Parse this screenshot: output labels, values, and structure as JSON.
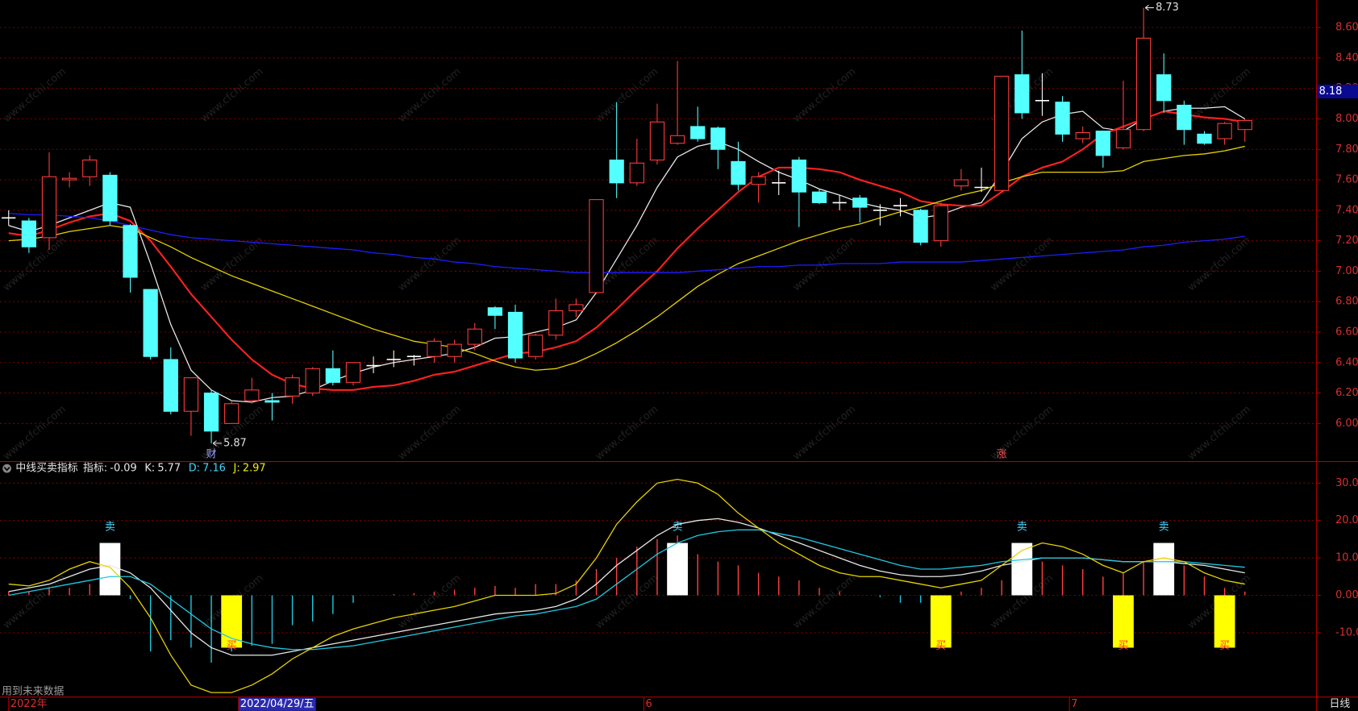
{
  "chart_data": [
    {
      "type": "candlestick",
      "categories": [
        "2022年",
        null,
        null,
        null,
        null,
        null,
        null,
        null,
        null,
        null,
        null,
        "2022/04/29/五",
        null,
        null,
        null,
        null,
        null,
        null,
        null,
        null,
        null,
        null,
        null,
        null,
        null,
        null,
        null,
        null,
        null,
        null,
        null,
        "6",
        null,
        null,
        null,
        null,
        null,
        null,
        null,
        null,
        null,
        null,
        null,
        null,
        null,
        null,
        null,
        null,
        null,
        null,
        null,
        null,
        "7",
        null,
        null,
        null,
        null,
        null,
        null,
        null,
        null,
        null
      ],
      "event_labels": [
        null,
        null,
        null,
        null,
        null,
        null,
        null,
        null,
        null,
        null,
        "财",
        null,
        null,
        null,
        null,
        null,
        null,
        null,
        null,
        null,
        null,
        null,
        null,
        null,
        null,
        null,
        null,
        null,
        null,
        null,
        null,
        null,
        null,
        null,
        null,
        null,
        null,
        null,
        null,
        null,
        null,
        null,
        null,
        null,
        null,
        null,
        null,
        null,
        null,
        "涨",
        null,
        null,
        null,
        null,
        null,
        null,
        null,
        null,
        null,
        null,
        null,
        null
      ],
      "open": [
        7.35,
        7.33,
        7.22,
        7.6,
        7.62,
        7.63,
        7.3,
        6.88,
        6.42,
        6.08,
        6.2,
        6.0,
        6.15,
        6.15,
        6.18,
        6.2,
        6.36,
        6.27,
        6.38,
        6.42,
        6.44,
        6.44,
        6.44,
        6.52,
        6.76,
        6.73,
        6.44,
        6.58,
        6.74,
        6.86,
        7.73,
        7.58,
        7.73,
        7.84,
        7.95,
        7.94,
        7.72,
        7.57,
        7.58,
        7.73,
        7.52,
        7.45,
        7.48,
        7.4,
        7.43,
        7.4,
        7.2,
        7.56,
        7.55,
        7.53,
        8.29,
        8.12,
        8.11,
        7.87,
        7.92,
        7.81,
        7.93,
        8.29,
        8.09,
        7.9,
        7.87,
        7.93
      ],
      "high": [
        7.4,
        7.35,
        7.78,
        7.65,
        7.76,
        7.65,
        7.31,
        6.88,
        6.5,
        6.3,
        6.22,
        6.15,
        6.3,
        6.2,
        6.32,
        6.37,
        6.48,
        6.4,
        6.44,
        6.48,
        6.45,
        6.56,
        6.55,
        6.66,
        6.77,
        6.78,
        6.59,
        6.82,
        6.82,
        7.47,
        8.11,
        7.87,
        8.1,
        8.38,
        8.08,
        7.95,
        7.85,
        7.65,
        7.66,
        7.75,
        7.54,
        7.5,
        7.5,
        7.44,
        7.48,
        7.41,
        7.45,
        7.67,
        7.68,
        8.28,
        8.58,
        8.3,
        8.15,
        7.95,
        7.92,
        8.25,
        8.73,
        8.43,
        8.12,
        7.92,
        7.98,
        8.0
      ],
      "low": [
        7.3,
        7.12,
        7.14,
        7.55,
        7.56,
        7.3,
        6.86,
        6.42,
        6.06,
        5.92,
        5.87,
        6.0,
        6.13,
        6.02,
        6.13,
        6.18,
        6.25,
        6.25,
        6.33,
        6.37,
        6.38,
        6.4,
        6.4,
        6.48,
        6.62,
        6.4,
        6.42,
        6.55,
        6.7,
        6.85,
        7.48,
        7.56,
        7.7,
        7.83,
        7.85,
        7.67,
        7.53,
        7.45,
        7.5,
        7.29,
        7.44,
        7.4,
        7.32,
        7.3,
        7.36,
        7.17,
        7.16,
        7.53,
        7.52,
        7.52,
        8.0,
        8.02,
        7.85,
        7.84,
        7.68,
        7.8,
        7.92,
        8.04,
        7.83,
        7.83,
        7.83,
        7.85
      ],
      "close": [
        7.35,
        7.16,
        7.62,
        7.61,
        7.73,
        7.33,
        6.96,
        6.44,
        6.08,
        6.3,
        5.95,
        6.13,
        6.22,
        6.14,
        6.3,
        6.36,
        6.27,
        6.4,
        6.38,
        6.42,
        6.44,
        6.54,
        6.52,
        6.62,
        6.71,
        6.43,
        6.58,
        6.74,
        6.78,
        7.47,
        7.58,
        7.71,
        7.98,
        7.89,
        7.87,
        7.8,
        7.57,
        7.62,
        7.58,
        7.52,
        7.45,
        7.45,
        7.42,
        7.4,
        7.43,
        7.19,
        7.43,
        7.6,
        7.55,
        8.28,
        8.04,
        8.12,
        7.9,
        7.91,
        7.76,
        7.93,
        8.53,
        8.12,
        7.93,
        7.84,
        7.97,
        7.99
      ],
      "up_color": "#ff3c3c",
      "down_color": "#54ffff",
      "flat_color": "#ffffff",
      "series": [
        {
          "color": "#e8e8e8",
          "values": [
            7.3,
            7.26,
            7.3,
            7.35,
            7.4,
            7.45,
            7.42,
            7.05,
            6.65,
            6.35,
            6.22,
            6.15,
            6.14,
            6.17,
            6.18,
            6.22,
            6.28,
            6.33,
            6.37,
            6.4,
            6.42,
            6.44,
            6.46,
            6.5,
            6.56,
            6.57,
            6.6,
            6.63,
            6.68,
            6.86,
            7.08,
            7.3,
            7.55,
            7.75,
            7.82,
            7.85,
            7.8,
            7.72,
            7.65,
            7.6,
            7.54,
            7.5,
            7.45,
            7.42,
            7.4,
            7.35,
            7.37,
            7.42,
            7.45,
            7.65,
            7.87,
            7.98,
            8.03,
            8.05,
            7.94,
            7.92,
            8.0,
            8.05,
            8.07,
            8.07,
            8.08,
            8.0
          ]
        },
        {
          "color": "#ff2020",
          "values": [
            7.25,
            7.23,
            7.27,
            7.32,
            7.36,
            7.38,
            7.33,
            7.2,
            7.03,
            6.85,
            6.7,
            6.55,
            6.42,
            6.32,
            6.26,
            6.23,
            6.22,
            6.22,
            6.24,
            6.25,
            6.28,
            6.32,
            6.34,
            6.38,
            6.42,
            6.46,
            6.47,
            6.5,
            6.54,
            6.63,
            6.75,
            6.88,
            7.0,
            7.15,
            7.28,
            7.4,
            7.52,
            7.62,
            7.68,
            7.68,
            7.67,
            7.65,
            7.6,
            7.56,
            7.52,
            7.46,
            7.44,
            7.43,
            7.43,
            7.52,
            7.62,
            7.68,
            7.72,
            7.8,
            7.9,
            7.95,
            8.0,
            8.05,
            8.03,
            8.01,
            8.0,
            7.98
          ]
        },
        {
          "color": "#e6d200",
          "values": [
            7.2,
            7.21,
            7.23,
            7.26,
            7.28,
            7.3,
            7.28,
            7.22,
            7.16,
            7.09,
            7.03,
            6.97,
            6.92,
            6.87,
            6.82,
            6.77,
            6.72,
            6.67,
            6.62,
            6.58,
            6.54,
            6.52,
            6.5,
            6.46,
            6.41,
            6.37,
            6.35,
            6.36,
            6.4,
            6.46,
            6.53,
            6.61,
            6.7,
            6.8,
            6.9,
            6.98,
            7.05,
            7.1,
            7.15,
            7.2,
            7.24,
            7.28,
            7.31,
            7.35,
            7.39,
            7.42,
            7.46,
            7.5,
            7.53,
            7.58,
            7.62,
            7.65,
            7.65,
            7.65,
            7.65,
            7.66,
            7.72,
            7.74,
            7.76,
            7.77,
            7.79,
            7.82
          ]
        },
        {
          "color": "#1e1eff",
          "values": [
            7.38,
            7.37,
            7.37,
            7.36,
            7.35,
            7.33,
            7.3,
            7.27,
            7.24,
            7.22,
            7.21,
            7.2,
            7.19,
            7.18,
            7.17,
            7.16,
            7.15,
            7.14,
            7.12,
            7.11,
            7.09,
            7.08,
            7.06,
            7.05,
            7.03,
            7.02,
            7.01,
            7.0,
            6.99,
            6.99,
            6.99,
            6.99,
            6.99,
            6.99,
            7.0,
            7.01,
            7.02,
            7.03,
            7.03,
            7.04,
            7.04,
            7.05,
            7.05,
            7.05,
            7.06,
            7.06,
            7.06,
            7.06,
            7.07,
            7.08,
            7.09,
            7.1,
            7.11,
            7.12,
            7.13,
            7.14,
            7.16,
            7.17,
            7.19,
            7.2,
            7.21,
            7.23
          ]
        }
      ],
      "ylim": [
        5.75,
        8.78
      ],
      "yticks": [
        {
          "value": 6,
          "label": "6.00"
        },
        {
          "value": 6.2,
          "label": "6.20"
        },
        {
          "value": 6.4,
          "label": "6.40"
        },
        {
          "value": 6.6,
          "label": "6.60"
        },
        {
          "value": 6.8,
          "label": "6.80"
        },
        {
          "value": 7,
          "label": "7.00"
        },
        {
          "value": 7.2,
          "label": "7.20"
        },
        {
          "value": 7.4,
          "label": "7.40"
        },
        {
          "value": 7.6,
          "label": "7.60"
        },
        {
          "value": 7.8,
          "label": "7.80"
        },
        {
          "value": 8,
          "label": "8.00"
        },
        {
          "value": 8.2,
          "label": "8.20"
        },
        {
          "value": 8.4,
          "label": "8.40"
        },
        {
          "value": 8.6,
          "label": "8.60"
        }
      ],
      "cursor_price": 8.18,
      "grid": true,
      "period": "日线",
      "watermark": "www.cfchi.com",
      "footnote": "用到未来数据"
    },
    {
      "type": "indicator",
      "title": "中线买卖指标",
      "readouts": [
        {
          "label": "指标:",
          "value": -0.09,
          "color": "#e8e8e8"
        },
        {
          "label": "K:",
          "value": 5.77,
          "color": "#e8e8e8"
        },
        {
          "label": "D:",
          "value": 7.16,
          "color": "#3fd8ff"
        },
        {
          "label": "J:",
          "value": 2.97,
          "color": "#f0f000"
        }
      ],
      "series": [
        {
          "color": "#e8e8e8",
          "values": [
            1,
            2,
            3,
            5,
            7,
            8,
            6,
            2,
            -4,
            -10,
            -14,
            -16,
            -16,
            -16,
            -15,
            -14,
            -13,
            -12,
            -11,
            -10,
            -9,
            -8,
            -7,
            -6,
            -5,
            -4.5,
            -4,
            -3,
            -1,
            3,
            8,
            12,
            16,
            19,
            20,
            20.5,
            19.5,
            18,
            16,
            14,
            12,
            10,
            8,
            6.5,
            5.5,
            5,
            5,
            5.5,
            6.5,
            8,
            9,
            10,
            10,
            10,
            9.5,
            9,
            9,
            9,
            8.5,
            8,
            7,
            6
          ]
        },
        {
          "color": "#20c8e0",
          "values": [
            0,
            1,
            2,
            3,
            4,
            5,
            5,
            3,
            -1,
            -5,
            -9,
            -11.5,
            -13,
            -14,
            -14.5,
            -14.5,
            -14,
            -13.5,
            -12.5,
            -11.5,
            -10.5,
            -9.5,
            -8.5,
            -7.5,
            -6.5,
            -5.5,
            -5,
            -4,
            -3,
            -1,
            3,
            7,
            11,
            14,
            16,
            17,
            17.5,
            17.5,
            16.5,
            15.5,
            14,
            12.5,
            11,
            9.5,
            8,
            7,
            7,
            7.5,
            8,
            9,
            9.5,
            10,
            10,
            10,
            9.5,
            9,
            9,
            9,
            9,
            8.5,
            8,
            7.5
          ]
        },
        {
          "color": "#e6d200",
          "values": [
            3,
            2.5,
            4,
            7,
            9,
            7.5,
            2,
            -6,
            -16,
            -24,
            -26,
            -26,
            -24,
            -21,
            -17,
            -14,
            -11,
            -9,
            -7.5,
            -6,
            -5,
            -4,
            -3,
            -1.5,
            0,
            0,
            0,
            0.5,
            3,
            10,
            19,
            25,
            30,
            31,
            30,
            27,
            22,
            18,
            14,
            11,
            8,
            6,
            5,
            5,
            4,
            3,
            2,
            3,
            4,
            8,
            12,
            14,
            13,
            11,
            8,
            6,
            9,
            10,
            9,
            6,
            4,
            3
          ]
        }
      ],
      "histogram": {
        "up_color": "#ff4040",
        "down_color": "#20c8e0",
        "values": [
          1,
          1,
          2,
          2,
          3,
          3,
          -1,
          -15,
          -12,
          -14,
          -18,
          -15,
          -13.5,
          -13,
          -8,
          -7,
          -5,
          -2,
          0,
          0.3,
          0.6,
          1,
          1.5,
          2,
          2.5,
          2,
          3,
          3,
          4,
          7,
          10,
          13,
          15,
          16,
          11,
          9,
          8,
          6,
          5,
          4,
          2,
          1,
          0,
          -0.5,
          -2,
          -2,
          -3,
          1,
          2,
          4,
          7,
          9,
          8,
          7,
          5,
          6,
          9,
          10,
          8,
          5,
          2,
          1
        ]
      },
      "sell_signals": {
        "label": "卖",
        "color": "#ffffff",
        "label_color": "#3fd8ff",
        "values": [
          null,
          null,
          null,
          null,
          null,
          14,
          null,
          null,
          null,
          null,
          null,
          null,
          null,
          null,
          null,
          null,
          null,
          null,
          null,
          null,
          null,
          null,
          null,
          null,
          null,
          null,
          null,
          null,
          null,
          null,
          null,
          null,
          null,
          14,
          null,
          null,
          null,
          null,
          null,
          null,
          null,
          null,
          null,
          null,
          null,
          null,
          null,
          null,
          null,
          null,
          14,
          null,
          null,
          null,
          null,
          null,
          null,
          14,
          null,
          null,
          null,
          null
        ]
      },
      "buy_signals": {
        "label": "买",
        "color": "#ffff00",
        "label_color": "#ff3030",
        "values": [
          null,
          null,
          null,
          null,
          null,
          null,
          null,
          null,
          null,
          null,
          null,
          -14,
          null,
          null,
          null,
          null,
          null,
          null,
          null,
          null,
          null,
          null,
          null,
          null,
          null,
          null,
          null,
          null,
          null,
          null,
          null,
          null,
          null,
          null,
          null,
          null,
          null,
          null,
          null,
          null,
          null,
          null,
          null,
          null,
          null,
          null,
          -14,
          null,
          null,
          null,
          null,
          null,
          null,
          null,
          null,
          -14,
          null,
          null,
          null,
          null,
          -14,
          null
        ]
      },
      "ylim": [
        -27.2,
        35.3
      ],
      "yticks": [
        {
          "value": -10,
          "label": "-10.00"
        },
        {
          "value": 0,
          "label": "0.00"
        },
        {
          "value": 10,
          "label": "10.00"
        },
        {
          "value": 20,
          "label": "20.00"
        },
        {
          "value": 30,
          "label": "30.00"
        }
      ],
      "grid": true
    }
  ]
}
